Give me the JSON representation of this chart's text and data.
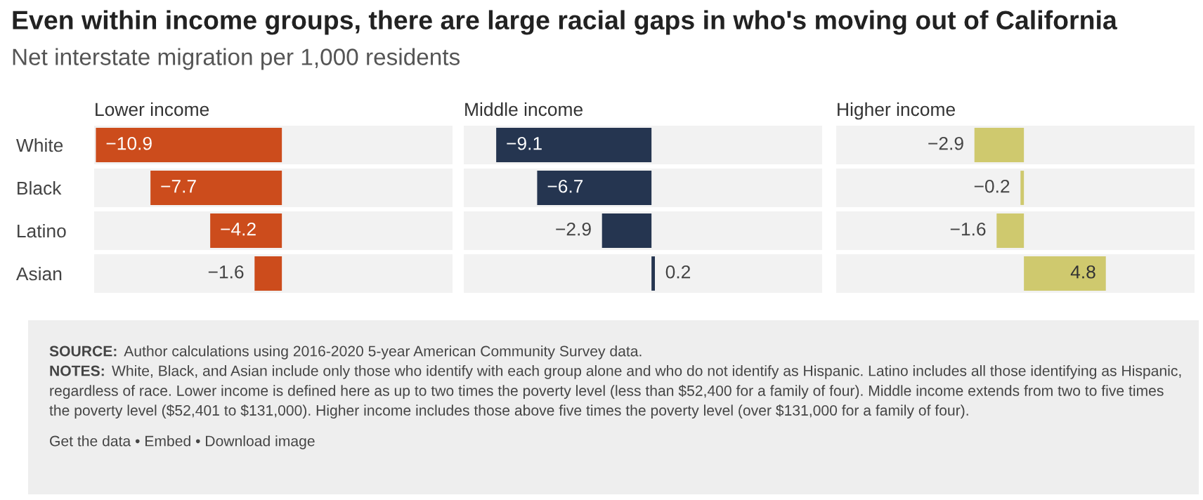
{
  "chart_data": [
    {
      "type": "other",
      "title": "Even within income groups, there are large racial gaps in who's moving out of California",
      "subtitle": "Net interstate migration per 1,000 residents",
      "annotations": [
        "SOURCE: Author calculations using 2016-2020 5-year American Community Survey data.",
        "NOTES: White, Black, and Asian include only those who identify with each group alone and who do not identify as Hispanic. Latino includes all those identifying as Hispanic, regardless of race. Lower income is defined here as up to two times the poverty level (less than $52,400 for a family of four). Middle income extends from two to five times the poverty level ($52,401 to $131,000). Higher income includes those above five times the poverty level (over $131,000 for a family of four).",
        "Get the data • Embed • Download image"
      ]
    },
    {
      "type": "bar",
      "orientation": "horizontal",
      "title": "Lower income",
      "categories": [
        "White",
        "Black",
        "Latino",
        "Asian"
      ],
      "values": [
        -10.9,
        -7.7,
        -4.2,
        -1.6
      ],
      "color": "#cc4c1c",
      "xlim": [
        -11,
        10
      ],
      "tick_labels": "y",
      "data_labels": true
    },
    {
      "type": "bar",
      "orientation": "horizontal",
      "title": "Middle income",
      "values": [
        -9.1,
        -6.7,
        -2.9,
        0.2
      ],
      "color": "#253550",
      "xlim": [
        -11,
        10
      ],
      "tick_labels": false,
      "data_labels": true
    },
    {
      "type": "bar",
      "orientation": "horizontal",
      "title": "Higher income",
      "values": [
        -2.9,
        -0.2,
        -1.6,
        4.8
      ],
      "color": "#cfc96e",
      "xlim": [
        -11,
        10
      ],
      "tick_labels": false,
      "data_labels": true
    }
  ]
}
